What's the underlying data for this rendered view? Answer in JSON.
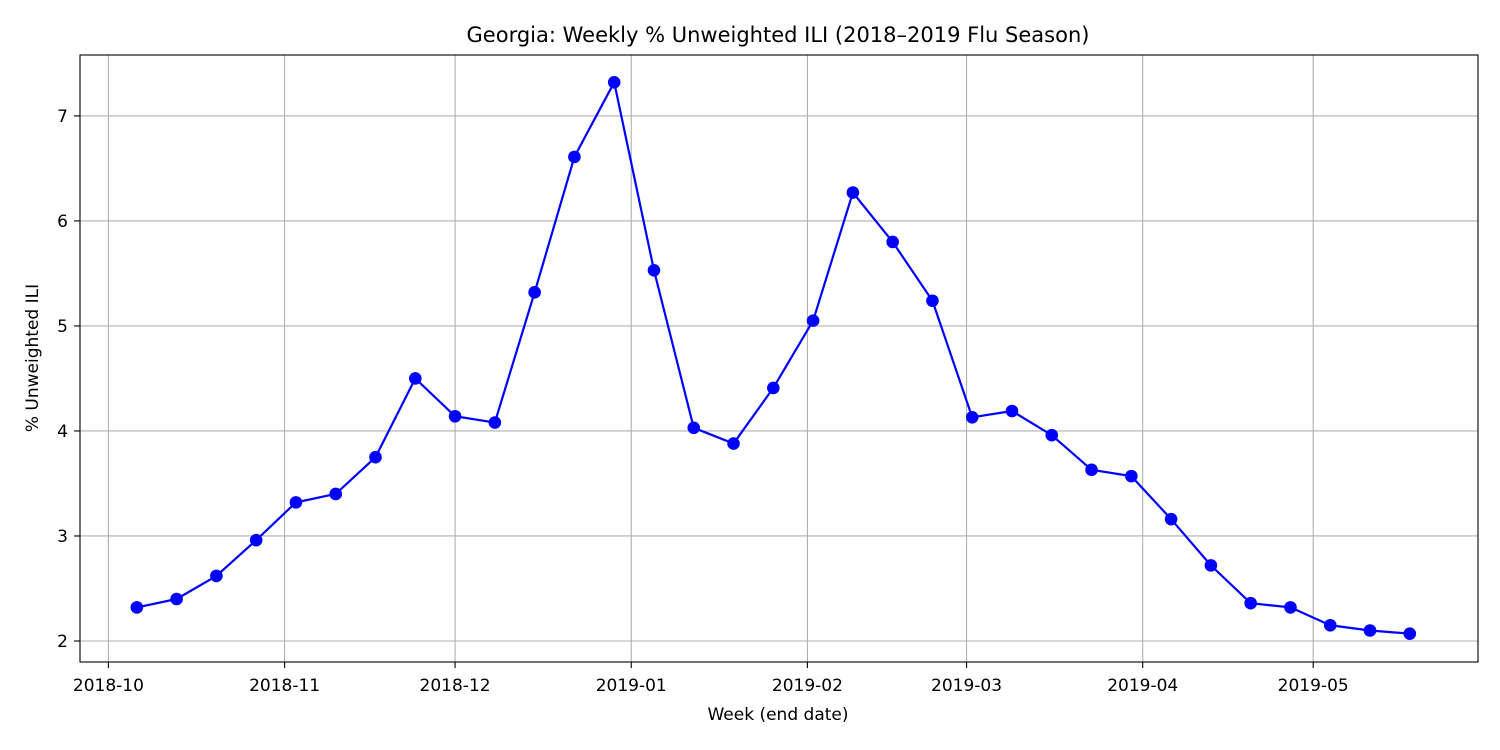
{
  "chart_data": {
    "type": "line",
    "title": "Georgia: Weekly % Unweighted ILI (2018–2019 Flu Season)",
    "xlabel": "Week (end date)",
    "ylabel": "% Unweighted ILI",
    "x_axis_kind": "date",
    "xlim": [
      "2018-09-26",
      "2019-05-30"
    ],
    "ylim": [
      1.8,
      7.58
    ],
    "xticks": [
      {
        "date": "2018-10-01",
        "label": "2018-10"
      },
      {
        "date": "2018-11-01",
        "label": "2018-11"
      },
      {
        "date": "2018-12-01",
        "label": "2018-12"
      },
      {
        "date": "2019-01-01",
        "label": "2019-01"
      },
      {
        "date": "2019-02-01",
        "label": "2019-02"
      },
      {
        "date": "2019-03-01",
        "label": "2019-03"
      },
      {
        "date": "2019-04-01",
        "label": "2019-04"
      },
      {
        "date": "2019-05-01",
        "label": "2019-05"
      }
    ],
    "yticks": [
      {
        "value": 2,
        "label": "2"
      },
      {
        "value": 3,
        "label": "3"
      },
      {
        "value": 4,
        "label": "4"
      },
      {
        "value": 5,
        "label": "5"
      },
      {
        "value": 6,
        "label": "6"
      },
      {
        "value": 7,
        "label": "7"
      }
    ],
    "grid": true,
    "legend": "none",
    "series": [
      {
        "color": "#0000ff",
        "marker": "circle",
        "x": [
          "2018-10-06",
          "2018-10-13",
          "2018-10-20",
          "2018-10-27",
          "2018-11-03",
          "2018-11-10",
          "2018-11-17",
          "2018-11-24",
          "2018-12-01",
          "2018-12-08",
          "2018-12-15",
          "2018-12-22",
          "2018-12-29",
          "2019-01-05",
          "2019-01-12",
          "2019-01-19",
          "2019-01-26",
          "2019-02-02",
          "2019-02-09",
          "2019-02-16",
          "2019-02-23",
          "2019-03-02",
          "2019-03-09",
          "2019-03-16",
          "2019-03-23",
          "2019-03-30",
          "2019-04-06",
          "2019-04-13",
          "2019-04-20",
          "2019-04-27",
          "2019-05-04",
          "2019-05-11",
          "2019-05-18"
        ],
        "values": [
          2.32,
          2.4,
          2.62,
          2.96,
          3.32,
          3.4,
          3.75,
          4.5,
          4.14,
          4.08,
          5.32,
          6.61,
          7.32,
          5.53,
          4.03,
          3.88,
          4.41,
          5.05,
          6.27,
          5.8,
          5.24,
          4.13,
          4.19,
          3.96,
          3.63,
          3.57,
          3.16,
          2.72,
          2.36,
          2.32,
          2.15,
          2.1,
          2.07
        ]
      }
    ]
  }
}
